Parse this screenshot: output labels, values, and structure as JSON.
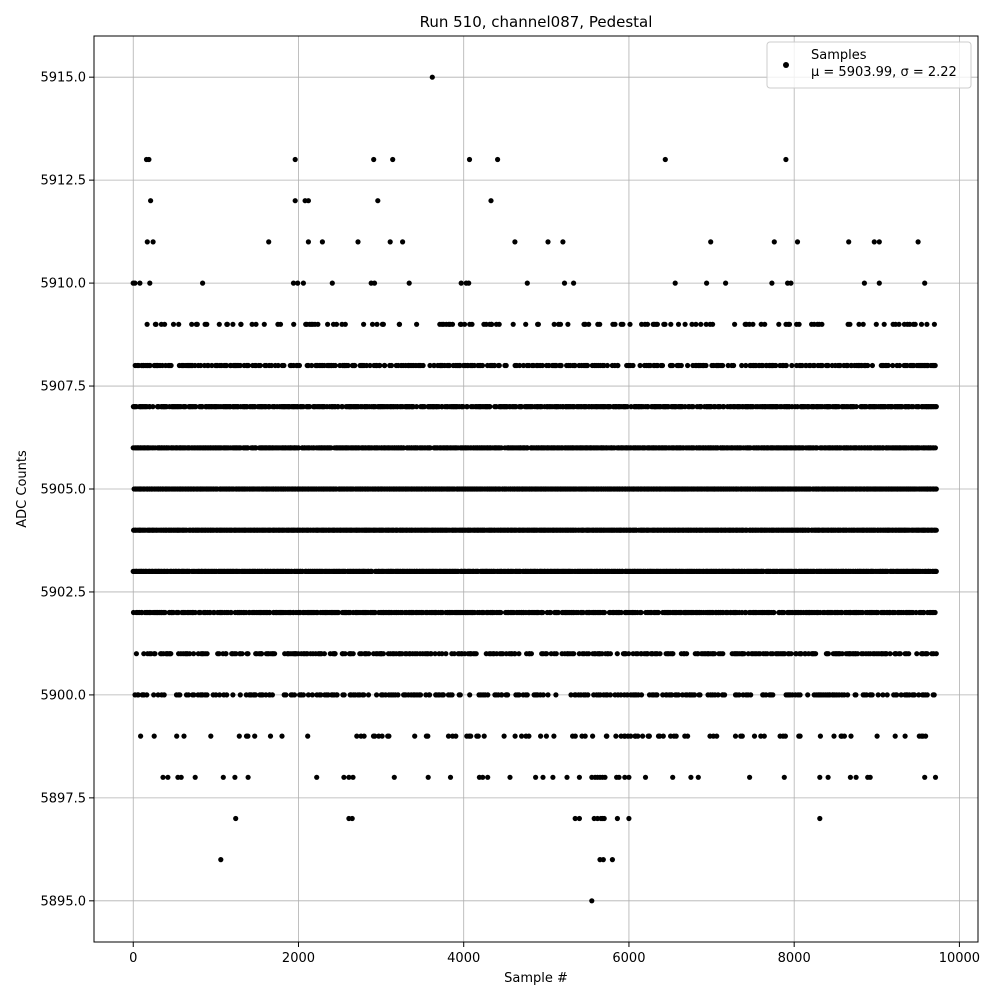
{
  "chart_data": {
    "type": "scatter",
    "title": "Run 510, channel087, Pedestal",
    "xlabel": "Sample #",
    "ylabel": "ADC Counts",
    "xlim": [
      -475,
      10225
    ],
    "ylim": [
      5894.0,
      5916.0
    ],
    "xticks": [
      0,
      2000,
      4000,
      6000,
      8000,
      10000
    ],
    "xtick_labels": [
      "0",
      "2000",
      "4000",
      "6000",
      "8000",
      "10000"
    ],
    "yticks": [
      5895.0,
      5897.5,
      5900.0,
      5902.5,
      5905.0,
      5907.5,
      5910.0,
      5912.5,
      5915.0
    ],
    "ytick_labels": [
      "5895.0",
      "5897.5",
      "5900.0",
      "5902.5",
      "5905.0",
      "5907.5",
      "5910.0",
      "5912.5",
      "5915.0"
    ],
    "grid": true,
    "legend_position": "top-right",
    "series": [
      {
        "name": "Samples",
        "stats_label": "μ = 5903.99, σ = 2.22",
        "color": "#000000",
        "x_range": [
          0,
          9720
        ],
        "level_density": [
          {
            "y": 5903,
            "fill": 0.95
          },
          {
            "y": 5904,
            "fill": 0.98
          },
          {
            "y": 5905,
            "fill": 0.95
          },
          {
            "y": 5906,
            "fill": 0.88
          },
          {
            "y": 5907,
            "fill": 0.7
          },
          {
            "y": 5902,
            "fill": 0.7
          },
          {
            "y": 5908,
            "fill": 0.45
          },
          {
            "y": 5901,
            "fill": 0.45
          },
          {
            "y": 5900,
            "fill": 0.3
          },
          {
            "y": 5909,
            "fill": 0.18
          },
          {
            "y": 5899,
            "fill": 0.12
          }
        ],
        "sparse_points": [
          [
            160,
            5913
          ],
          [
            190,
            5913
          ],
          [
            1960,
            5913
          ],
          [
            2910,
            5913
          ],
          [
            3140,
            5913
          ],
          [
            4070,
            5913
          ],
          [
            4410,
            5913
          ],
          [
            6440,
            5913
          ],
          [
            7900,
            5913
          ],
          [
            3620,
            5915
          ],
          [
            210,
            5912
          ],
          [
            1960,
            5912
          ],
          [
            2080,
            5912
          ],
          [
            2120,
            5912
          ],
          [
            2960,
            5912
          ],
          [
            4330,
            5912
          ],
          [
            170,
            5911
          ],
          [
            240,
            5911
          ],
          [
            1640,
            5911
          ],
          [
            2120,
            5911
          ],
          [
            2290,
            5911
          ],
          [
            2720,
            5911
          ],
          [
            3110,
            5911
          ],
          [
            3260,
            5911
          ],
          [
            4620,
            5911
          ],
          [
            5020,
            5911
          ],
          [
            5200,
            5911
          ],
          [
            6990,
            5911
          ],
          [
            7760,
            5911
          ],
          [
            8040,
            5911
          ],
          [
            8660,
            5911
          ],
          [
            8970,
            5911
          ],
          [
            9030,
            5911
          ],
          [
            9500,
            5911
          ],
          [
            0,
            5910
          ],
          [
            20,
            5910
          ],
          [
            80,
            5910
          ],
          [
            200,
            5910
          ],
          [
            840,
            5910
          ],
          [
            1940,
            5910
          ],
          [
            1990,
            5910
          ],
          [
            2060,
            5910
          ],
          [
            2410,
            5910
          ],
          [
            2880,
            5910
          ],
          [
            2920,
            5910
          ],
          [
            3340,
            5910
          ],
          [
            3970,
            5910
          ],
          [
            4030,
            5910
          ],
          [
            4060,
            5910
          ],
          [
            4770,
            5910
          ],
          [
            5220,
            5910
          ],
          [
            5330,
            5910
          ],
          [
            6560,
            5910
          ],
          [
            6940,
            5910
          ],
          [
            7170,
            5910
          ],
          [
            7730,
            5910
          ],
          [
            7920,
            5910
          ],
          [
            7960,
            5910
          ],
          [
            8850,
            5910
          ],
          [
            9030,
            5910
          ],
          [
            9580,
            5910
          ],
          [
            360,
            5898
          ],
          [
            420,
            5898
          ],
          [
            540,
            5898
          ],
          [
            580,
            5898
          ],
          [
            750,
            5898
          ],
          [
            1090,
            5898
          ],
          [
            1230,
            5898
          ],
          [
            1390,
            5898
          ],
          [
            2220,
            5898
          ],
          [
            2550,
            5898
          ],
          [
            2610,
            5898
          ],
          [
            2660,
            5898
          ],
          [
            3160,
            5898
          ],
          [
            3570,
            5898
          ],
          [
            3840,
            5898
          ],
          [
            4190,
            5898
          ],
          [
            4230,
            5898
          ],
          [
            4290,
            5898
          ],
          [
            4560,
            5898
          ],
          [
            4870,
            5898
          ],
          [
            4960,
            5898
          ],
          [
            5080,
            5898
          ],
          [
            5250,
            5898
          ],
          [
            5400,
            5898
          ],
          [
            5550,
            5898
          ],
          [
            5590,
            5898
          ],
          [
            5620,
            5898
          ],
          [
            5650,
            5898
          ],
          [
            5680,
            5898
          ],
          [
            5710,
            5898
          ],
          [
            5850,
            5898
          ],
          [
            5880,
            5898
          ],
          [
            5950,
            5898
          ],
          [
            6000,
            5898
          ],
          [
            6200,
            5898
          ],
          [
            6530,
            5898
          ],
          [
            6750,
            5898
          ],
          [
            6840,
            5898
          ],
          [
            7460,
            5898
          ],
          [
            7880,
            5898
          ],
          [
            8310,
            5898
          ],
          [
            8410,
            5898
          ],
          [
            8680,
            5898
          ],
          [
            8750,
            5898
          ],
          [
            8890,
            5898
          ],
          [
            8920,
            5898
          ],
          [
            9580,
            5898
          ],
          [
            9710,
            5898
          ],
          [
            1240,
            5897
          ],
          [
            2610,
            5897
          ],
          [
            2650,
            5897
          ],
          [
            5350,
            5897
          ],
          [
            5400,
            5897
          ],
          [
            5580,
            5897
          ],
          [
            5620,
            5897
          ],
          [
            5660,
            5897
          ],
          [
            5680,
            5897
          ],
          [
            5700,
            5897
          ],
          [
            5860,
            5897
          ],
          [
            6000,
            5897
          ],
          [
            8310,
            5897
          ],
          [
            1060,
            5896
          ],
          [
            5650,
            5896
          ],
          [
            5690,
            5896
          ],
          [
            5800,
            5896
          ],
          [
            5550,
            5895
          ]
        ]
      }
    ]
  }
}
